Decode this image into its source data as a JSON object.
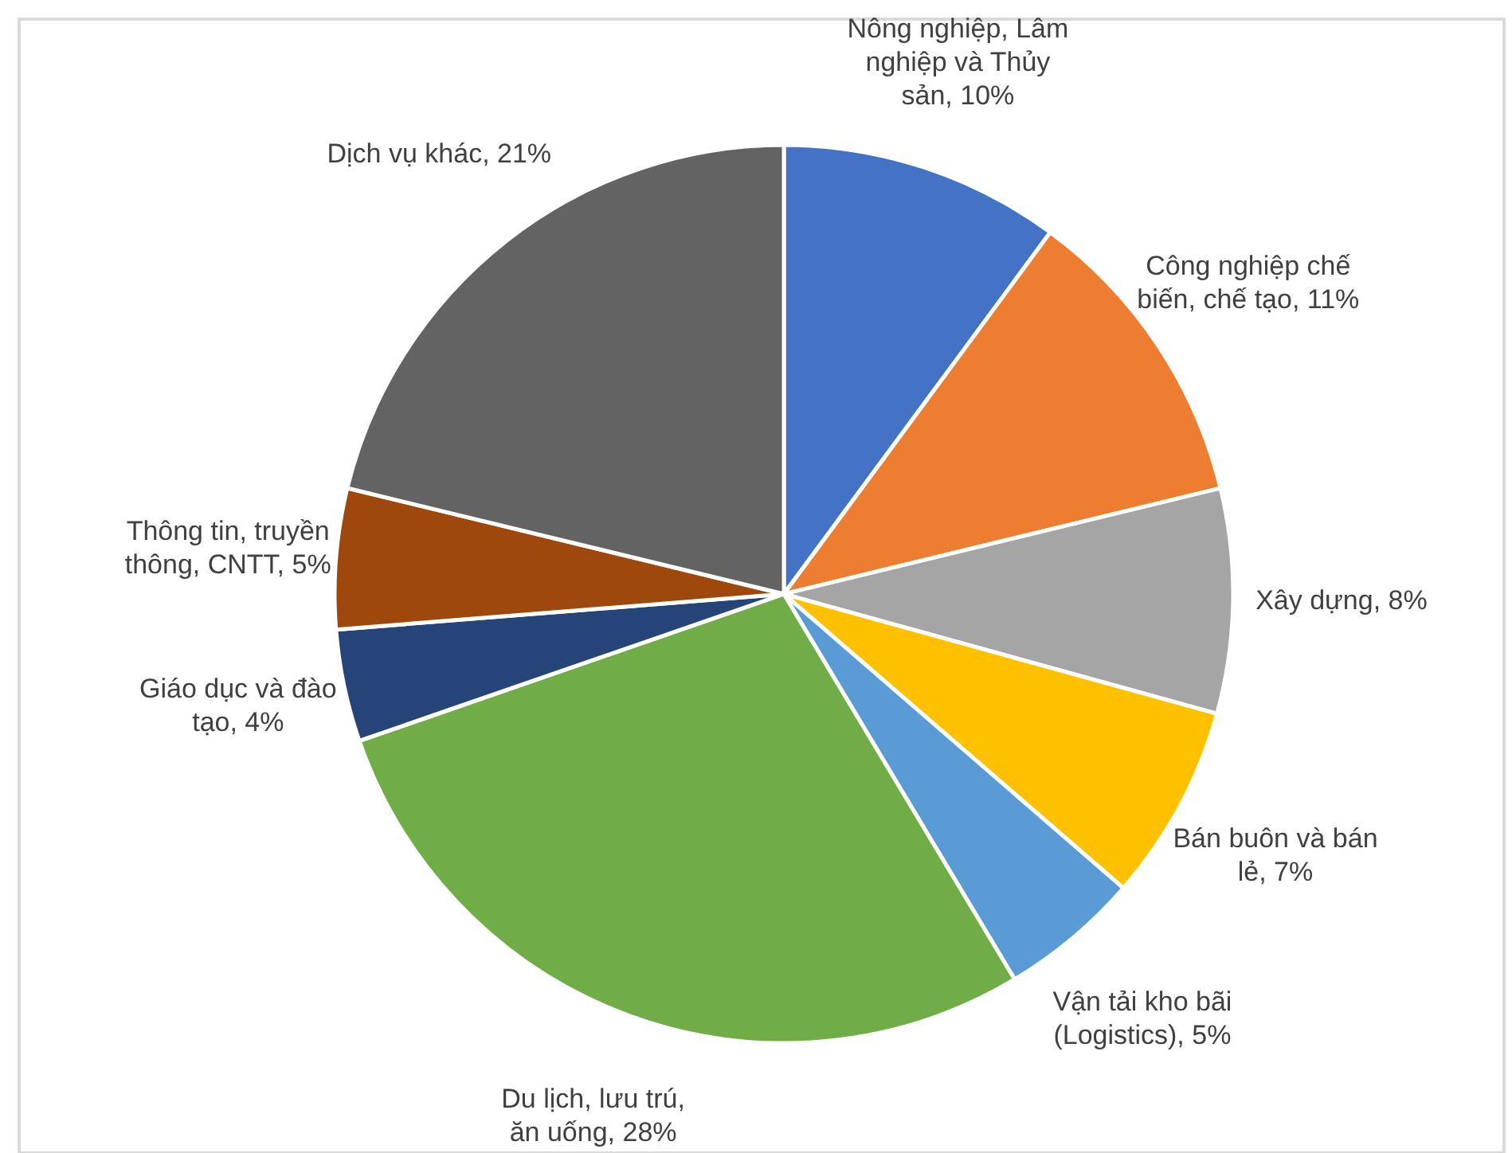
{
  "chart_data": {
    "type": "pie",
    "categories": [
      "Nông nghiệp, Lâm nghiệp và Thủy sản",
      "Công nghiệp chế biến, chế tạo",
      "Xây dựng",
      "Bán buôn và bán lẻ",
      "Vận tải kho bãi (Logistics)",
      "Du lịch, lưu trú, ăn uống",
      "Giáo dục và đào tạo",
      "Thông tin, truyền thông, CNTT",
      "Dịch vụ khác"
    ],
    "values": [
      10,
      11,
      8,
      7,
      5,
      28,
      4,
      5,
      21
    ],
    "value_labels": [
      "10%",
      "11%",
      "8%",
      "7%",
      "5%",
      "28%",
      "4%",
      "5%",
      "21%"
    ],
    "colors": [
      "#4472c4",
      "#ed7d31",
      "#a5a5a5",
      "#ffc000",
      "#5b9bd5",
      "#70ad47",
      "#264478",
      "#9e480e",
      "#636363"
    ]
  }
}
